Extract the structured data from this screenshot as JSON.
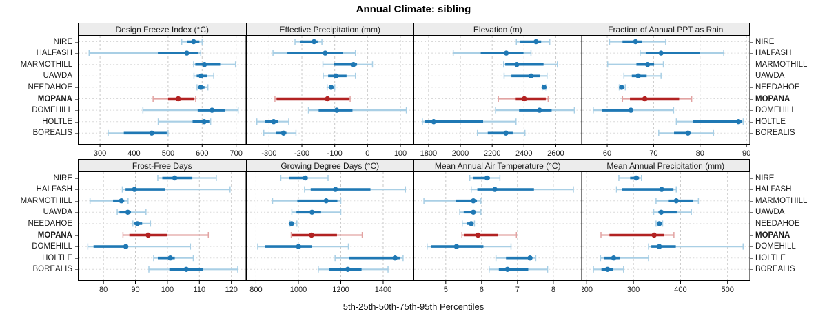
{
  "title": "Annual Climate: sibling",
  "caption": "5th-25th-50th-75th-95th Percentiles",
  "sites": [
    "NIRE",
    "HALFASH",
    "MARMOTHILL",
    "UAWDA",
    "NEEDAHOE",
    "MOPANA",
    "DOMEHILL",
    "HOLTLE",
    "BOREALIS"
  ],
  "highlight_site": "MOPANA",
  "colors": {
    "series_blue": "#1f78b4",
    "series_blue_light": "#a9cfe5",
    "series_red": "#b22222",
    "series_red_light": "#e2a3a2",
    "grid_vertical": "#c9c9c9",
    "grid_horizontal": "#d8d8d8",
    "strip_background": "#ececec",
    "panel_border": "#000000"
  },
  "chart_data": {
    "type": "scatter",
    "variant": "percentile-interval-dotplot",
    "percentiles": [
      5,
      25,
      50,
      75,
      95
    ],
    "legend_note": "dot = 50th percentile, thick bar = 25th-75th, thin line with caps = 5th-95th",
    "grid": "dashed",
    "panels": [
      {
        "title": "Design Freeze Index (°C)",
        "ticks": [
          300,
          400,
          500,
          600,
          700
        ],
        "xlim": [
          235,
          730
        ],
        "values": [
          [
            540,
            555,
            575,
            592,
            600
          ],
          [
            268,
            470,
            555,
            589,
            596
          ],
          [
            575,
            580,
            607,
            653,
            698
          ],
          [
            576,
            584,
            597,
            614,
            634
          ],
          [
            585,
            591,
            596,
            607,
            617
          ],
          [
            456,
            500,
            530,
            577,
            581
          ],
          [
            426,
            587,
            629,
            668,
            706
          ],
          [
            471,
            572,
            606,
            621,
            625
          ],
          [
            324,
            370,
            452,
            496,
            500
          ]
        ]
      },
      {
        "title": "Effective Precipitation (mm)",
        "ticks": [
          -300,
          -200,
          -100,
          0,
          100
        ],
        "xlim": [
          -370,
          143
        ],
        "values": [
          [
            -221,
            -205,
            -163,
            -152,
            -139
          ],
          [
            -288,
            -244,
            -129,
            -75,
            -37
          ],
          [
            -136,
            -103,
            -43,
            -32,
            15
          ],
          [
            -135,
            -120,
            -96,
            -64,
            -37
          ],
          [
            -123,
            -118,
            -111,
            -104,
            -100
          ],
          [
            -282,
            -277,
            -122,
            -55,
            -53
          ],
          [
            -180,
            -149,
            -94,
            -46,
            118
          ],
          [
            -337,
            -312,
            -286,
            -273,
            -240
          ],
          [
            -316,
            -279,
            -256,
            -247,
            -218
          ]
        ]
      },
      {
        "title": "Elevation (m)",
        "ticks": [
          1800,
          2000,
          2200,
          2400,
          2600
        ],
        "xlim": [
          1705,
          2765
        ],
        "values": [
          [
            2352,
            2377,
            2476,
            2508,
            2562
          ],
          [
            1955,
            2128,
            2289,
            2397,
            2444
          ],
          [
            2272,
            2282,
            2355,
            2523,
            2610
          ],
          [
            2275,
            2321,
            2445,
            2501,
            2545
          ],
          [
            2515,
            2520,
            2526,
            2531,
            2537
          ],
          [
            2239,
            2348,
            2402,
            2537,
            2552
          ],
          [
            2221,
            2369,
            2498,
            2574,
            2717
          ],
          [
            1761,
            1778,
            1832,
            2143,
            2350
          ],
          [
            2107,
            2172,
            2286,
            2329,
            2406
          ]
        ]
      },
      {
        "title": "Fraction of Annual PPT as Rain",
        "ticks": [
          60,
          70,
          80,
          90
        ],
        "xlim": [
          54.5,
          90.8
        ],
        "values": [
          [
            60.5,
            63.3,
            66.1,
            67.5,
            72.6
          ],
          [
            67.1,
            68.3,
            71.6,
            80,
            85.1
          ],
          [
            60.1,
            66.3,
            68.7,
            70.1,
            72.1
          ],
          [
            63.6,
            65.3,
            66.7,
            68.5,
            71.6
          ],
          [
            62.6,
            62.9,
            63.1,
            63.4,
            63.9
          ],
          [
            63.3,
            64.9,
            68.1,
            75.5,
            78.2
          ],
          [
            57,
            58.9,
            65.1,
            65.5,
            74.3
          ],
          [
            74.9,
            78.5,
            88.3,
            89,
            89.3
          ],
          [
            71.1,
            74.4,
            77.4,
            78,
            82.9
          ]
        ]
      },
      {
        "title": "Frost-Free Days",
        "ticks": [
          80,
          90,
          100,
          110,
          120
        ],
        "xlim": [
          72,
          124.7
        ],
        "values": [
          [
            97,
            98.4,
            102.3,
            107.8,
            115.3
          ],
          [
            85.9,
            86.9,
            89.7,
            99.3,
            119.6
          ],
          [
            75.8,
            83,
            85.6,
            86.5,
            87.7
          ],
          [
            84.3,
            85,
            87.6,
            88.6,
            93.3
          ],
          [
            89.2,
            89.5,
            90.6,
            92.1,
            94.7
          ],
          [
            86.1,
            88.1,
            94,
            100,
            112.8
          ],
          [
            75.1,
            76.9,
            87,
            87.3,
            107.2
          ],
          [
            95.7,
            97,
            100.9,
            102.3,
            108.1
          ],
          [
            94.2,
            100.6,
            105.9,
            111.2,
            122
          ]
        ]
      },
      {
        "title": "Growing Degree Days (°C)",
        "ticks": [
          800,
          1000,
          1200,
          1400
        ],
        "xlim": [
          753,
          1548
        ],
        "values": [
          [
            917,
            955,
            1033,
            1044,
            1140
          ],
          [
            1029,
            1058,
            1175,
            1340,
            1505
          ],
          [
            878,
            995,
            1131,
            1184,
            1200
          ],
          [
            969,
            991,
            1064,
            1107,
            1200
          ],
          [
            960,
            965,
            968,
            976,
            993
          ],
          [
            966,
            971,
            1062,
            1182,
            1301
          ],
          [
            808,
            844,
            1001,
            1064,
            1236
          ],
          [
            1173,
            1238,
            1456,
            1478,
            1494
          ],
          [
            1094,
            1146,
            1233,
            1298,
            1423
          ]
        ]
      },
      {
        "title": "Mean Annual Air Temperature (°C)",
        "ticks": [
          5,
          6,
          7,
          8
        ],
        "xlim": [
          4.1,
          8.8
        ],
        "values": [
          [
            5.67,
            5.77,
            6.15,
            6.23,
            6.51
          ],
          [
            5.71,
            5.88,
            6.37,
            7.46,
            8.56
          ],
          [
            4.39,
            5.29,
            5.77,
            5.87,
            5.98
          ],
          [
            5.39,
            5.5,
            5.77,
            5.8,
            5.98
          ],
          [
            5.46,
            5.59,
            5.71,
            5.77,
            5.8
          ],
          [
            5.45,
            5.51,
            5.9,
            6.46,
            6.97
          ],
          [
            4.48,
            4.59,
            5.3,
            6.05,
            6.82
          ],
          [
            6.4,
            6.68,
            7.35,
            7.4,
            7.51
          ],
          [
            6.21,
            6.48,
            6.72,
            7.3,
            7.84
          ]
        ]
      },
      {
        "title": "Mean Annual Precipitation (mm)",
        "ticks": [
          200,
          300,
          400,
          500
        ],
        "xlim": [
          190,
          548
        ],
        "values": [
          [
            269,
            293,
            306,
            312,
            317
          ],
          [
            264,
            276,
            360,
            385,
            391
          ],
          [
            348,
            375,
            391,
            427,
            438
          ],
          [
            343,
            353,
            359,
            392,
            423
          ],
          [
            348,
            351,
            355,
            358,
            362
          ],
          [
            231,
            249,
            344,
            365,
            386
          ],
          [
            332,
            338,
            355,
            390,
            533
          ],
          [
            230,
            238,
            258,
            271,
            332
          ],
          [
            215,
            232,
            245,
            257,
            279
          ]
        ]
      }
    ]
  }
}
